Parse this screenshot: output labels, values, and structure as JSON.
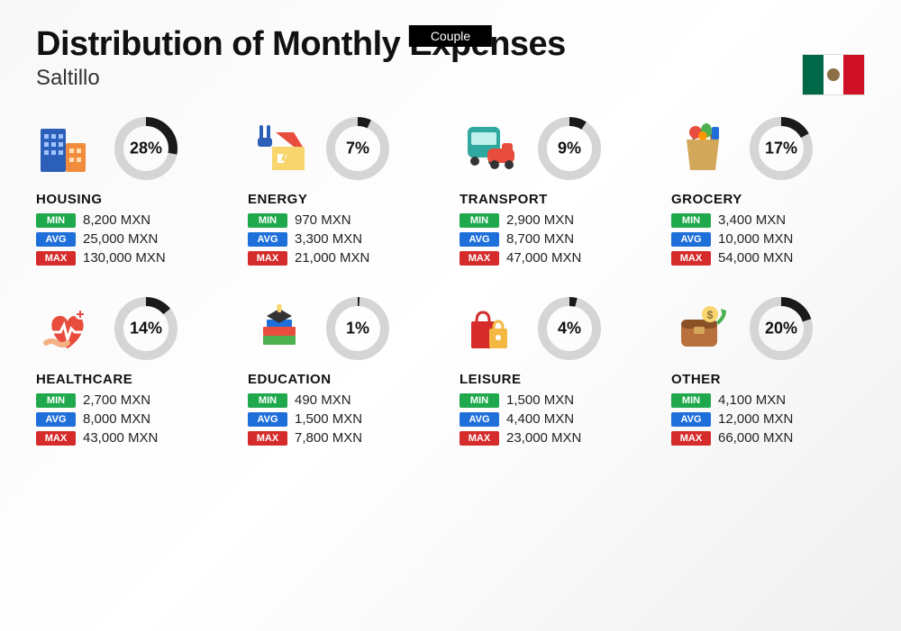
{
  "tag": "Couple",
  "title": "Distribution of Monthly Expenses",
  "subtitle": "Saltillo",
  "country": "Mexico",
  "currency": "MXN",
  "labels": {
    "min": "MIN",
    "avg": "AVG",
    "max": "MAX"
  },
  "colors": {
    "min_badge": "#1fa94c",
    "avg_badge": "#1e6fd9",
    "max_badge": "#d52b2b",
    "donut_fg": "#1a1a1a",
    "donut_bg": "#d5d5d5",
    "background": "#f8f8f8",
    "text": "#111111"
  },
  "donut": {
    "radius": 30,
    "stroke_width": 10,
    "circumference": 188.5
  },
  "flag": {
    "stripes": [
      "#006847",
      "#ffffff",
      "#ce1126"
    ]
  },
  "categories": [
    {
      "name": "HOUSING",
      "percent": 28,
      "min": "8,200 MXN",
      "avg": "25,000 MXN",
      "max": "130,000 MXN",
      "icon": "housing"
    },
    {
      "name": "ENERGY",
      "percent": 7,
      "min": "970 MXN",
      "avg": "3,300 MXN",
      "max": "21,000 MXN",
      "icon": "energy"
    },
    {
      "name": "TRANSPORT",
      "percent": 9,
      "min": "2,900 MXN",
      "avg": "8,700 MXN",
      "max": "47,000 MXN",
      "icon": "transport"
    },
    {
      "name": "GROCERY",
      "percent": 17,
      "min": "3,400 MXN",
      "avg": "10,000 MXN",
      "max": "54,000 MXN",
      "icon": "grocery"
    },
    {
      "name": "HEALTHCARE",
      "percent": 14,
      "min": "2,700 MXN",
      "avg": "8,000 MXN",
      "max": "43,000 MXN",
      "icon": "healthcare"
    },
    {
      "name": "EDUCATION",
      "percent": 1,
      "min": "490 MXN",
      "avg": "1,500 MXN",
      "max": "7,800 MXN",
      "icon": "education"
    },
    {
      "name": "LEISURE",
      "percent": 4,
      "min": "1,500 MXN",
      "avg": "4,400 MXN",
      "max": "23,000 MXN",
      "icon": "leisure"
    },
    {
      "name": "OTHER",
      "percent": 20,
      "min": "4,100 MXN",
      "avg": "12,000 MXN",
      "max": "66,000 MXN",
      "icon": "other"
    }
  ]
}
